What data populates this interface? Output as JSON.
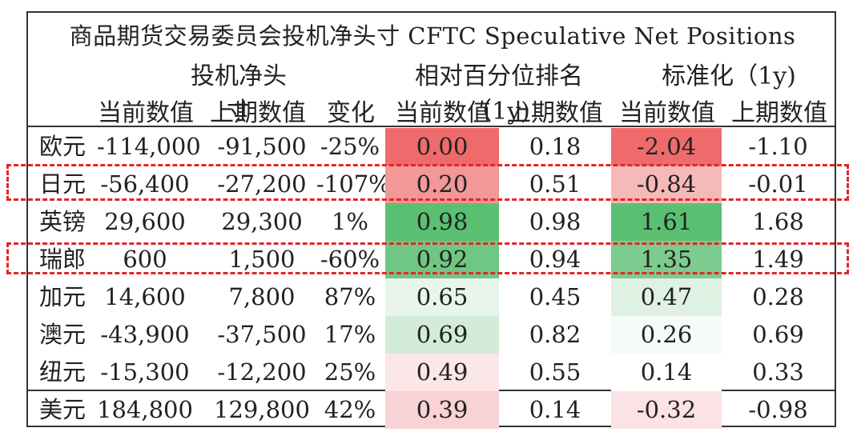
{
  "title": "商品期货交易委员会投机净头寸 CFTC Speculative Net Positions",
  "groups": {
    "net": "投机净头寸",
    "rank": "相对百分位排名（1y)",
    "std": "标准化（1y)"
  },
  "subheaders": [
    "当前数值",
    "上期数值",
    "变化",
    "当前数值",
    "上期数值",
    "当前数值",
    "上期数值"
  ],
  "rows": [
    {
      "name": "欧元",
      "cur": "-114,000",
      "prev": "-91,500",
      "chg": "-25%",
      "rank_cur": "0.00",
      "rank_prev": "0.18",
      "std_cur": "-2.04",
      "std_prev": "-1.10",
      "rank_color": "#ef6b6b",
      "std_color": "#ef6b6b"
    },
    {
      "name": "日元",
      "cur": "-56,400",
      "prev": "-27,200",
      "chg": "-107%",
      "rank_cur": "0.20",
      "rank_prev": "0.51",
      "std_cur": "-0.84",
      "std_prev": "-0.01",
      "rank_color": "#f29898",
      "std_color": "#f6b9b9"
    },
    {
      "name": "英镑",
      "cur": "29,600",
      "prev": "29,300",
      "chg": "1%",
      "rank_cur": "0.98",
      "rank_prev": "0.98",
      "std_cur": "1.61",
      "std_prev": "1.68",
      "rank_color": "#5bbf72",
      "std_color": "#5bbf72"
    },
    {
      "name": "瑞郎",
      "cur": "600",
      "prev": "1,500",
      "chg": "-60%",
      "rank_cur": "0.92",
      "rank_prev": "0.94",
      "std_cur": "1.35",
      "std_prev": "1.49",
      "rank_color": "#6fc783",
      "std_color": "#7ccc8f"
    },
    {
      "name": "加元",
      "cur": "14,600",
      "prev": "7,800",
      "chg": "87%",
      "rank_cur": "0.65",
      "rank_prev": "0.45",
      "std_cur": "0.47",
      "std_prev": "0.28",
      "rank_color": "#e8f5eb",
      "std_color": "#dff1e3"
    },
    {
      "name": "澳元",
      "cur": "-43,900",
      "prev": "-37,500",
      "chg": "17%",
      "rank_cur": "0.69",
      "rank_prev": "0.82",
      "std_cur": "0.26",
      "std_prev": "0.69",
      "rank_color": "#d2ecd8",
      "std_color": "#f6fbf7"
    },
    {
      "name": "纽元",
      "cur": "-15,300",
      "prev": "-12,200",
      "chg": "25%",
      "rank_cur": "0.49",
      "rank_prev": "0.55",
      "std_cur": "0.14",
      "std_prev": "0.33",
      "rank_color": "#fbe6e8",
      "std_color": "#ffffff"
    },
    {
      "name": "美元",
      "cur": "184,800",
      "prev": "129,800",
      "chg": "42%",
      "rank_cur": "0.39",
      "rank_prev": "0.14",
      "std_cur": "-0.32",
      "std_prev": "-0.98",
      "rank_color": "#f8d2d4",
      "std_color": "#fbe2e4"
    }
  ]
}
